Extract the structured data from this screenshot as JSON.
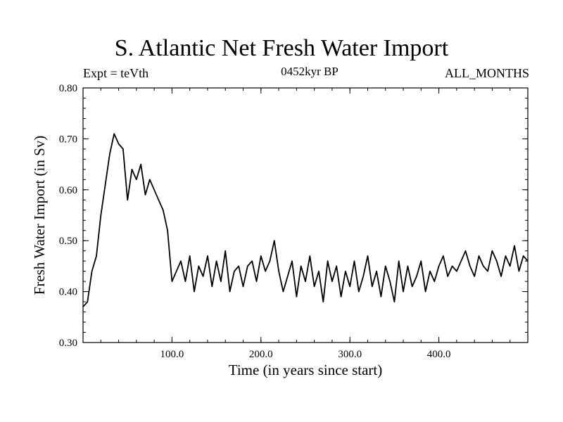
{
  "chart_data": {
    "type": "line",
    "title": "S. Atlantic Net Fresh Water Import",
    "subtitle_left": "Expt = teVth",
    "subtitle_center": "0452kyr BP",
    "subtitle_right": "ALL_MONTHS",
    "xlabel": "Time (in years since start)",
    "ylabel": "Fresh Water Import (in Sv)",
    "xlim": [
      0,
      500
    ],
    "ylim": [
      0.3,
      0.8
    ],
    "xticks": [
      100.0,
      200.0,
      300.0,
      400.0
    ],
    "xtick_labels": [
      "100.0",
      "200.0",
      "300.0",
      "400.0"
    ],
    "yticks": [
      0.3,
      0.4,
      0.5,
      0.6,
      0.7,
      0.8
    ],
    "ytick_labels": [
      "0.30",
      "0.40",
      "0.50",
      "0.60",
      "0.70",
      "0.80"
    ],
    "grid": false,
    "series": [
      {
        "color": "#000000",
        "x": [
          0,
          5,
          10,
          15,
          20,
          25,
          30,
          35,
          40,
          45,
          50,
          55,
          60,
          65,
          70,
          75,
          80,
          85,
          90,
          95,
          100,
          105,
          110,
          115,
          120,
          125,
          130,
          135,
          140,
          145,
          150,
          155,
          160,
          165,
          170,
          175,
          180,
          185,
          190,
          195,
          200,
          205,
          210,
          215,
          220,
          225,
          230,
          235,
          240,
          245,
          250,
          255,
          260,
          265,
          270,
          275,
          280,
          285,
          290,
          295,
          300,
          305,
          310,
          315,
          320,
          325,
          330,
          335,
          340,
          345,
          350,
          355,
          360,
          365,
          370,
          375,
          380,
          385,
          390,
          395,
          400,
          405,
          410,
          415,
          420,
          425,
          430,
          435,
          440,
          445,
          450,
          455,
          460,
          465,
          470,
          475,
          480,
          485,
          490,
          495,
          500
        ],
        "y": [
          0.37,
          0.38,
          0.44,
          0.47,
          0.55,
          0.61,
          0.67,
          0.71,
          0.69,
          0.68,
          0.58,
          0.64,
          0.62,
          0.65,
          0.59,
          0.62,
          0.6,
          0.58,
          0.56,
          0.52,
          0.42,
          0.44,
          0.46,
          0.42,
          0.47,
          0.4,
          0.45,
          0.43,
          0.47,
          0.41,
          0.46,
          0.42,
          0.48,
          0.4,
          0.44,
          0.45,
          0.41,
          0.45,
          0.46,
          0.42,
          0.47,
          0.44,
          0.46,
          0.5,
          0.44,
          0.4,
          0.43,
          0.46,
          0.39,
          0.45,
          0.42,
          0.47,
          0.41,
          0.44,
          0.38,
          0.46,
          0.42,
          0.45,
          0.39,
          0.44,
          0.41,
          0.46,
          0.4,
          0.43,
          0.47,
          0.41,
          0.44,
          0.39,
          0.45,
          0.42,
          0.38,
          0.46,
          0.4,
          0.45,
          0.41,
          0.43,
          0.46,
          0.4,
          0.44,
          0.42,
          0.45,
          0.47,
          0.43,
          0.45,
          0.44,
          0.46,
          0.48,
          0.45,
          0.43,
          0.47,
          0.45,
          0.44,
          0.48,
          0.46,
          0.43,
          0.47,
          0.45,
          0.49,
          0.44,
          0.47,
          0.46
        ]
      }
    ]
  }
}
